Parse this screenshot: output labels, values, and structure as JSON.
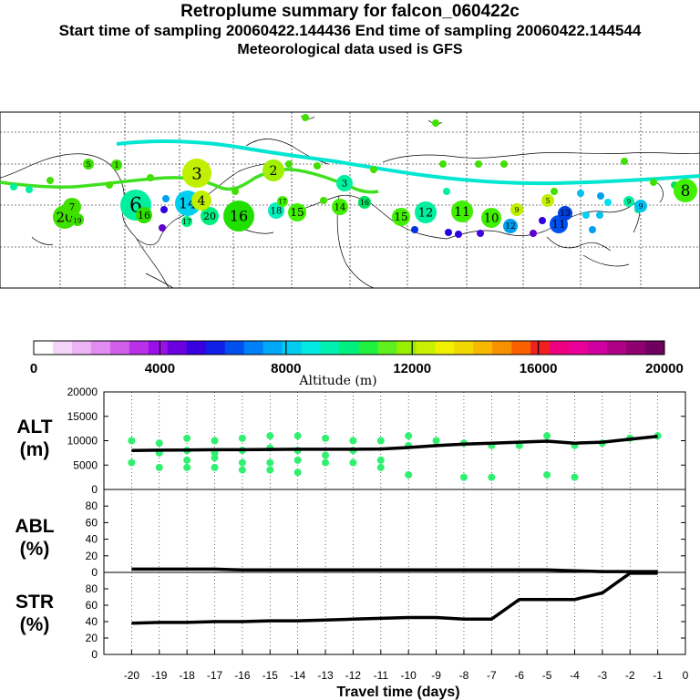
{
  "header": {
    "title": "Retroplume summary for falcon_060422c",
    "sampling": "Start time of sampling 20060422.144436     End time of sampling 20060422.144544",
    "met": "Meteorological data used is GFS"
  },
  "colorbar": {
    "xlabel": "Altitude (m)",
    "ticks": [
      "0",
      "4000",
      "8000",
      "12000",
      "16000",
      "20000"
    ],
    "colors": [
      "#ffffff",
      "#f4d6f8",
      "#ecb4f4",
      "#e08cf0",
      "#d060ec",
      "#b830e8",
      "#9a10e8",
      "#6a00e0",
      "#3800e0",
      "#1020e8",
      "#0050f0",
      "#0080f8",
      "#00a8f8",
      "#00ccf0",
      "#00e8e0",
      "#00f0b0",
      "#00f080",
      "#20f040",
      "#60f020",
      "#98f000",
      "#c8f000",
      "#f0f000",
      "#f0d800",
      "#f8b800",
      "#f89000",
      "#f86000",
      "#f02020",
      "#f00080",
      "#e80098",
      "#d000a0",
      "#b00088",
      "#900070",
      "#700060"
    ]
  },
  "map_labels": [
    {
      "t": "20",
      "c": "#40e000"
    },
    {
      "t": "18",
      "c": "#30e000"
    },
    {
      "t": "5",
      "c": "#40e000"
    },
    {
      "t": "1",
      "c": "#40e000"
    },
    {
      "t": "3",
      "c": "#c0f000"
    },
    {
      "t": "2",
      "c": "#a0f000"
    },
    {
      "t": "7",
      "c": "#40e000"
    },
    {
      "t": "6",
      "c": "#00f0a0"
    },
    {
      "t": "16",
      "c": "#30e000"
    },
    {
      "t": "14",
      "c": "#00d0f0"
    },
    {
      "t": "20",
      "c": "#00f080"
    },
    {
      "t": "3",
      "c": "#00f0a0"
    },
    {
      "t": "18",
      "c": "#00f0c0"
    },
    {
      "t": "17",
      "c": "#40f000"
    },
    {
      "t": "15",
      "c": "#40f000"
    },
    {
      "t": "14",
      "c": "#40f000"
    },
    {
      "t": "4",
      "c": "#c0f000"
    },
    {
      "t": "16",
      "c": "#20e000"
    },
    {
      "t": "15",
      "c": "#40f000"
    },
    {
      "t": "12",
      "c": "#00f0a0"
    },
    {
      "t": "11",
      "c": "#40f000"
    },
    {
      "t": "10",
      "c": "#40f000"
    },
    {
      "t": "9",
      "c": "#c0f000"
    },
    {
      "t": "12",
      "c": "#00a0f0"
    },
    {
      "t": "11",
      "c": "#0050f0"
    },
    {
      "t": "13",
      "c": "#0040e0"
    },
    {
      "t": "5",
      "c": "#c0f000"
    },
    {
      "t": "9",
      "c": "#00c0f0"
    },
    {
      "t": "8",
      "c": "#40f000"
    },
    {
      "t": "9",
      "c": "#00f0a0"
    },
    {
      "t": "19",
      "c": "#40e000"
    },
    {
      "t": "17",
      "c": "#00f080"
    },
    {
      "t": "16",
      "c": "#00e060"
    }
  ],
  "chart_data": [
    {
      "type": "line",
      "panel": "ALT",
      "ylabel": "ALT\n(m)",
      "ylabel_lines": [
        "ALT",
        "(m)"
      ],
      "xlabel": "Travel time (days)",
      "ylim": [
        0,
        20000
      ],
      "yticks": [
        "20000",
        "15000",
        "10000",
        "5000",
        "0"
      ],
      "x": [
        -20,
        -19,
        -18,
        -17,
        -16,
        -15,
        -14,
        -13,
        -12,
        -11,
        -10,
        -9,
        -8,
        -7,
        -6,
        -5,
        -4,
        -3,
        -2,
        -1
      ],
      "series": [
        {
          "name": "mean altitude",
          "values": [
            8000,
            8050,
            8100,
            8150,
            8150,
            8200,
            8250,
            8250,
            8250,
            8300,
            8600,
            9000,
            9300,
            9500,
            9700,
            9900,
            9500,
            9700,
            10300,
            10900
          ]
        }
      ],
      "scatter": [
        {
          "x": -20,
          "y": 10000
        },
        {
          "x": -20,
          "y": 5500
        },
        {
          "x": -19,
          "y": 9500
        },
        {
          "x": -19,
          "y": 7500
        },
        {
          "x": -19,
          "y": 4500
        },
        {
          "x": -18,
          "y": 10500
        },
        {
          "x": -18,
          "y": 8000
        },
        {
          "x": -18,
          "y": 6000
        },
        {
          "x": -18,
          "y": 4500
        },
        {
          "x": -17,
          "y": 10000
        },
        {
          "x": -17,
          "y": 7500
        },
        {
          "x": -17,
          "y": 6500
        },
        {
          "x": -17,
          "y": 4500
        },
        {
          "x": -16,
          "y": 10500
        },
        {
          "x": -16,
          "y": 8000
        },
        {
          "x": -16,
          "y": 5500
        },
        {
          "x": -16,
          "y": 4000
        },
        {
          "x": -15,
          "y": 11000
        },
        {
          "x": -15,
          "y": 8500
        },
        {
          "x": -15,
          "y": 5500
        },
        {
          "x": -15,
          "y": 4000
        },
        {
          "x": -14,
          "y": 11000
        },
        {
          "x": -14,
          "y": 8000
        },
        {
          "x": -14,
          "y": 6000
        },
        {
          "x": -14,
          "y": 3500
        },
        {
          "x": -13,
          "y": 10500
        },
        {
          "x": -13,
          "y": 7000
        },
        {
          "x": -13,
          "y": 5500
        },
        {
          "x": -12,
          "y": 10000
        },
        {
          "x": -12,
          "y": 8000
        },
        {
          "x": -12,
          "y": 5500
        },
        {
          "x": -11,
          "y": 10000
        },
        {
          "x": -11,
          "y": 6000
        },
        {
          "x": -11,
          "y": 4500
        },
        {
          "x": -10,
          "y": 9000
        },
        {
          "x": -10,
          "y": 11000
        },
        {
          "x": -10,
          "y": 3000
        },
        {
          "x": -9,
          "y": 10000
        },
        {
          "x": -8,
          "y": 9500
        },
        {
          "x": -8,
          "y": 2500
        },
        {
          "x": -7,
          "y": 9000
        },
        {
          "x": -7,
          "y": 2500
        },
        {
          "x": -6,
          "y": 9000
        },
        {
          "x": -5,
          "y": 11000
        },
        {
          "x": -5,
          "y": 3000
        },
        {
          "x": -4,
          "y": 9000
        },
        {
          "x": -4,
          "y": 2500
        },
        {
          "x": -3,
          "y": 9500
        },
        {
          "x": -2,
          "y": 10500
        },
        {
          "x": -1,
          "y": 11000
        }
      ]
    },
    {
      "type": "line",
      "panel": "ABL",
      "ylabel": "ABL\n(%)",
      "ylabel_lines": [
        "ABL",
        "(%)"
      ],
      "ylim": [
        0,
        100
      ],
      "yticks": [
        "80",
        "60",
        "40",
        "20",
        "0"
      ],
      "x": [
        -20,
        -19,
        -18,
        -17,
        -16,
        -15,
        -14,
        -13,
        -12,
        -11,
        -10,
        -9,
        -8,
        -7,
        -6,
        -5,
        -4,
        -3,
        -2,
        -1
      ],
      "series": [
        {
          "name": "ABL fraction",
          "values": [
            4,
            4,
            4,
            4,
            3,
            3,
            3,
            3,
            3,
            3,
            3,
            3,
            3,
            3,
            3,
            3,
            2,
            1,
            1,
            1
          ]
        }
      ]
    },
    {
      "type": "line",
      "panel": "STR",
      "ylabel": "STR\n(%)",
      "ylabel_lines": [
        "STR",
        "(%)"
      ],
      "ylim": [
        0,
        100
      ],
      "yticks": [
        "80",
        "60",
        "40",
        "20",
        "0"
      ],
      "xticks": [
        "-20",
        "-19",
        "-18",
        "-17",
        "-16",
        "-15",
        "-14",
        "-13",
        "-12",
        "-11",
        "-10",
        "-9",
        "-8",
        "-7",
        "-6",
        "-5",
        "-4",
        "-3",
        "-2",
        "-1",
        "0"
      ],
      "x": [
        -20,
        -19,
        -18,
        -17,
        -16,
        -15,
        -14,
        -13,
        -12,
        -11,
        -10,
        -9,
        -8,
        -7,
        -6,
        -5,
        -4,
        -3,
        -2,
        -1
      ],
      "series": [
        {
          "name": "stratospheric fraction",
          "values": [
            38,
            39,
            39,
            40,
            40,
            41,
            41,
            42,
            43,
            44,
            45,
            45,
            43,
            43,
            67,
            67,
            67,
            75,
            99,
            99
          ]
        }
      ]
    }
  ]
}
